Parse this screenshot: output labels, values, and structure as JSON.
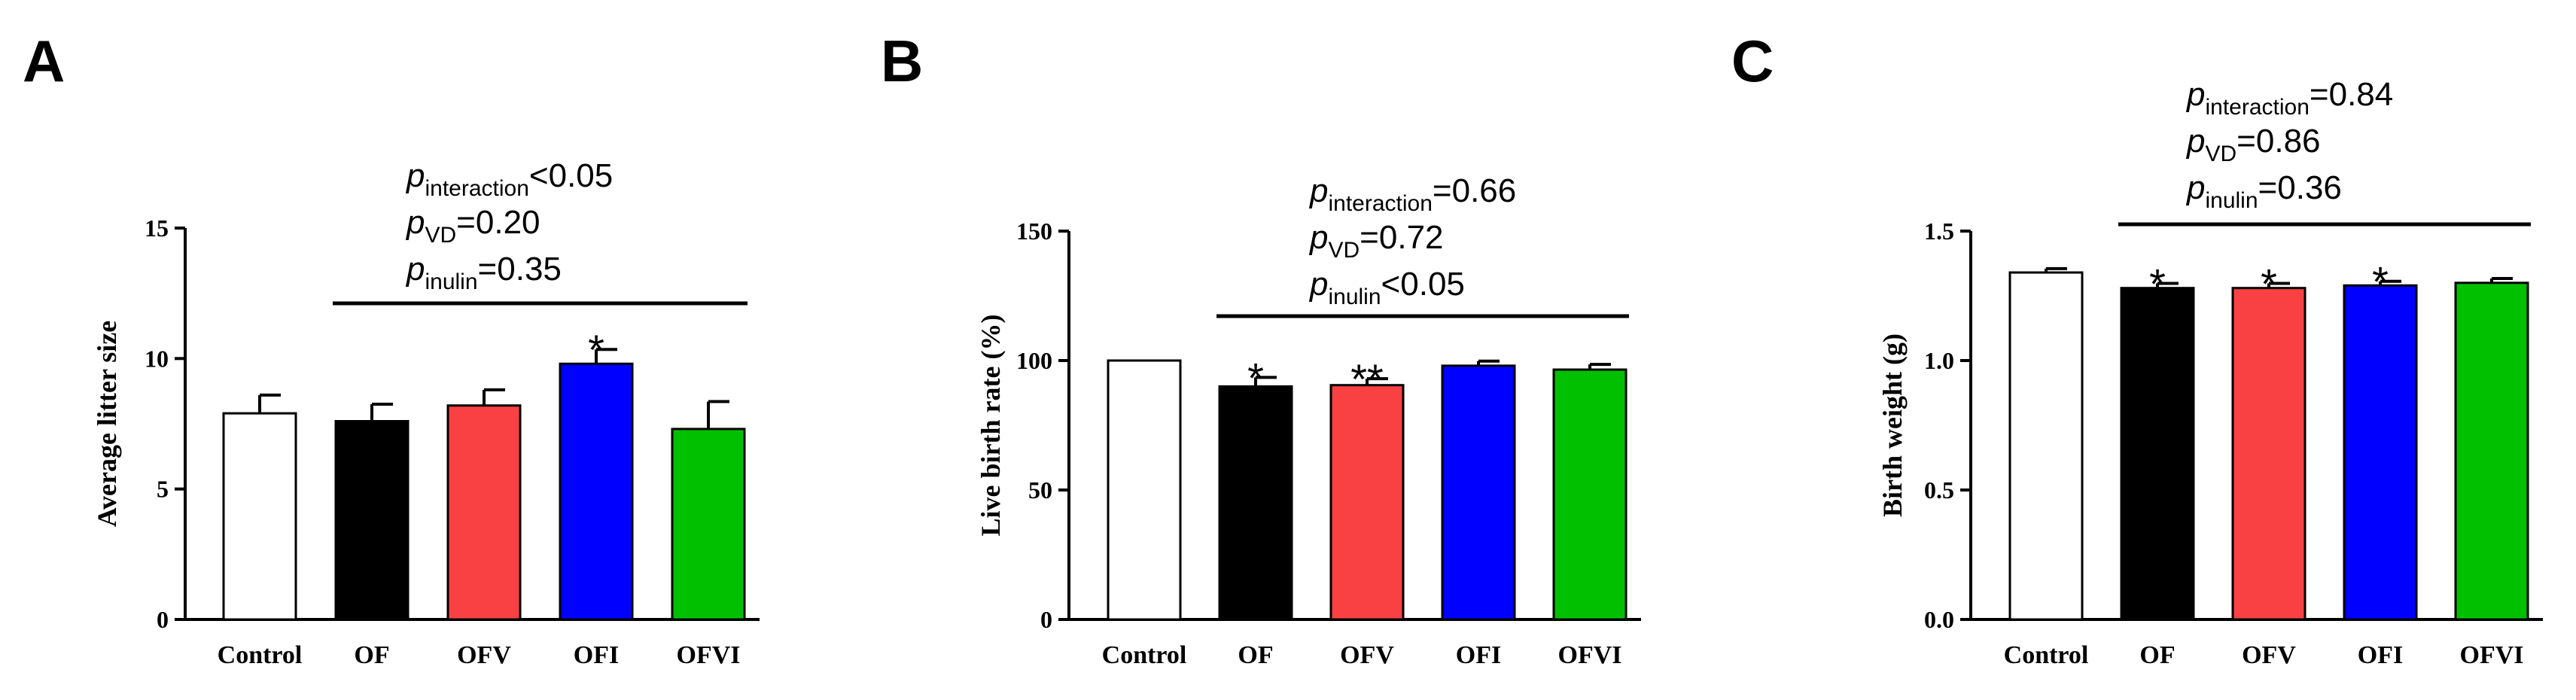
{
  "chart_data": [
    {
      "panel": "A",
      "type": "bar",
      "ylabel": "Average litter size",
      "ylim": [
        0,
        15
      ],
      "yticks": [
        0,
        5,
        10,
        15
      ],
      "categories": [
        "Control",
        "OF",
        "OFV",
        "OFI",
        "OFVI"
      ],
      "values": [
        7.9,
        7.6,
        8.2,
        9.8,
        7.3
      ],
      "errors": [
        0.7,
        0.65,
        0.6,
        0.55,
        1.05
      ],
      "colors": [
        "#ffffff",
        "#000000",
        "#f94144",
        "#0000ff",
        "#00c000"
      ],
      "significance": [
        "",
        "",
        "",
        "*",
        ""
      ],
      "stats": {
        "bracket_from": "OF",
        "bracket_to": "OFVI",
        "lines": [
          {
            "p": "p",
            "sub": "interaction",
            "rest": "<0.05"
          },
          {
            "p": "p",
            "sub": "VD",
            "rest": "=0.20"
          },
          {
            "p": "p",
            "sub": "inulin",
            "rest": "=0.35"
          }
        ]
      }
    },
    {
      "panel": "B",
      "type": "bar",
      "ylabel": "Live birth rate (%)",
      "ylim": [
        0,
        150
      ],
      "yticks": [
        0,
        50,
        100,
        150
      ],
      "categories": [
        "Control",
        "OF",
        "OFV",
        "OFI",
        "OFVI"
      ],
      "values": [
        100,
        90,
        90.5,
        98,
        96.5
      ],
      "errors": [
        0,
        3.5,
        2.5,
        1.8,
        2.0
      ],
      "colors": [
        "#ffffff",
        "#000000",
        "#f94144",
        "#0000ff",
        "#00c000"
      ],
      "significance": [
        "",
        "*",
        "**",
        "",
        ""
      ],
      "stats": {
        "bracket_from": "OF",
        "bracket_to": "OFVI",
        "lines": [
          {
            "p": "p",
            "sub": "interaction",
            "rest": "=0.66"
          },
          {
            "p": "p",
            "sub": "VD",
            "rest": "=0.72"
          },
          {
            "p": "p",
            "sub": "inulin",
            "rest": "<0.05"
          }
        ]
      }
    },
    {
      "panel": "C",
      "type": "bar",
      "ylabel": "Birth weight (g)",
      "ylim": [
        0,
        1.5
      ],
      "yticks": [
        "0.0",
        "0.5",
        "1.0",
        "1.5"
      ],
      "categories": [
        "Control",
        "OF",
        "OFV",
        "OFI",
        "OFVI"
      ],
      "values": [
        1.34,
        1.28,
        1.28,
        1.29,
        1.3
      ],
      "errors": [
        0.015,
        0.018,
        0.018,
        0.016,
        0.017
      ],
      "colors": [
        "#ffffff",
        "#000000",
        "#f94144",
        "#0000ff",
        "#00c000"
      ],
      "significance": [
        "",
        "*",
        "*",
        "*",
        ""
      ],
      "stats": {
        "bracket_from": "OF",
        "bracket_to": "OFVI",
        "lines": [
          {
            "p": "p",
            "sub": "interaction",
            "rest": "=0.84"
          },
          {
            "p": "p",
            "sub": "VD",
            "rest": "=0.86"
          },
          {
            "p": "p",
            "sub": "inulin",
            "rest": "=0.36"
          }
        ]
      }
    }
  ]
}
